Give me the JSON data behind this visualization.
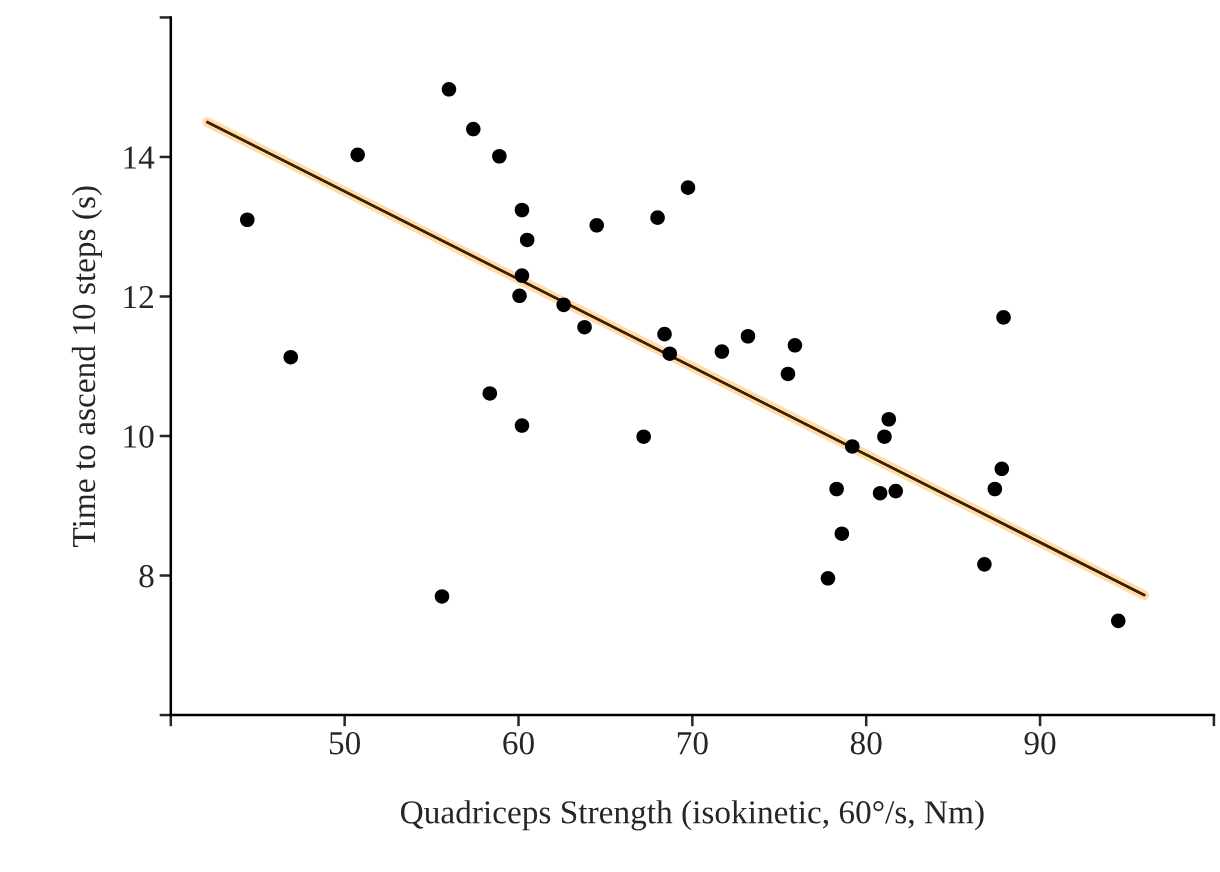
{
  "chart_data": {
    "type": "scatter",
    "xlabel": "Quadriceps Strength (isokinetic, 60°/s, Nm)",
    "ylabel": "Time to ascend 10 steps (s)",
    "xlim": [
      40,
      100
    ],
    "ylim": [
      6,
      16
    ],
    "xticks": [
      {
        "value": 40,
        "label": null
      },
      50,
      60,
      70,
      80,
      90,
      {
        "value": 100,
        "label": null
      }
    ],
    "yticks": [
      {
        "value": 6,
        "label": null
      },
      8,
      10,
      12,
      14,
      {
        "value": 16,
        "label": null
      }
    ],
    "series": [
      {
        "marker": "circle",
        "color": "#000000",
        "x": [
          44.4,
          50.75,
          56.0,
          57.4,
          58.9,
          60.2,
          60.5,
          60.2,
          60.06,
          62.6,
          46.9,
          58.35,
          60.2,
          64.5,
          68.0,
          69.75,
          63.8,
          68.4,
          68.7,
          71.7,
          73.2,
          75.9,
          75.5,
          67.2,
          79.2,
          81.3,
          81.05,
          78.3,
          80.8,
          81.7,
          78.6,
          77.8,
          87.9,
          87.8,
          87.4,
          86.8,
          94.5,
          55.6
        ],
        "values": [
          13.1,
          14.03,
          14.97,
          14.4,
          14.01,
          13.24,
          12.81,
          12.3,
          12.01,
          11.88,
          11.13,
          10.61,
          10.15,
          13.02,
          13.13,
          13.56,
          11.56,
          11.46,
          11.18,
          11.21,
          11.43,
          11.3,
          10.89,
          9.99,
          9.85,
          10.24,
          9.99,
          9.24,
          9.18,
          9.21,
          8.6,
          7.96,
          11.7,
          9.53,
          9.24,
          8.16,
          7.35,
          7.7
        ]
      },
      {
        "type": "line",
        "color": "#3b2200",
        "x": [
          42.1,
          96.0
        ],
        "values": [
          14.5,
          7.72
        ]
      }
    ]
  }
}
